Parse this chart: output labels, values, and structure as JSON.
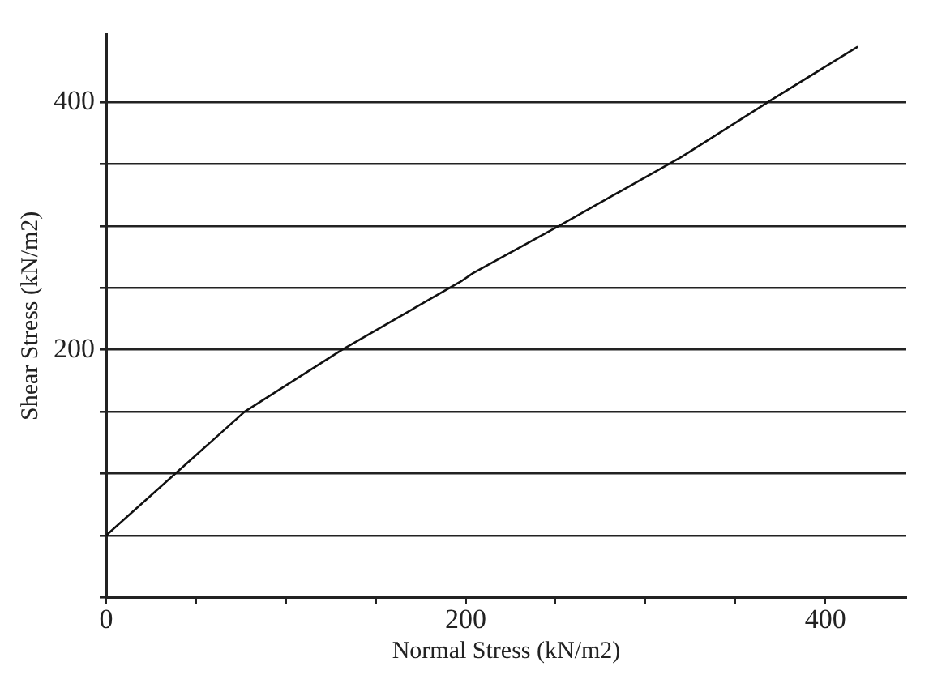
{
  "chart_data": {
    "type": "line",
    "xlabel": "Normal Stress (kN/m2)",
    "ylabel": "Shear Stress (kN/m2)",
    "series": [
      {
        "color": "#111111",
        "x": [
          0,
          77,
          131,
          198,
          204,
          254,
          320,
          371,
          418
        ],
        "values": [
          50,
          150,
          200,
          256,
          262,
          302,
          356,
          403,
          445
        ]
      }
    ],
    "xlim": [
      0,
      445
    ],
    "ylim": [
      0,
      455
    ],
    "xticks": [
      0,
      {
        "value": 50,
        "label": null
      },
      {
        "value": 100,
        "label": null
      },
      {
        "value": 150,
        "label": null
      },
      200,
      {
        "value": 250,
        "label": null
      },
      {
        "value": 300,
        "label": null
      },
      {
        "value": 350,
        "label": null
      },
      400
    ],
    "yticks": [
      {
        "value": 0,
        "label": null
      },
      {
        "value": 50,
        "label": null
      },
      {
        "value": 100,
        "label": null
      },
      {
        "value": 150,
        "label": null
      },
      200,
      {
        "value": 250,
        "label": null
      },
      {
        "value": 300,
        "label": null
      },
      {
        "value": 350,
        "label": null
      },
      400
    ],
    "grid": "y",
    "marker": "none",
    "line_style": "solid",
    "legend": false
  }
}
